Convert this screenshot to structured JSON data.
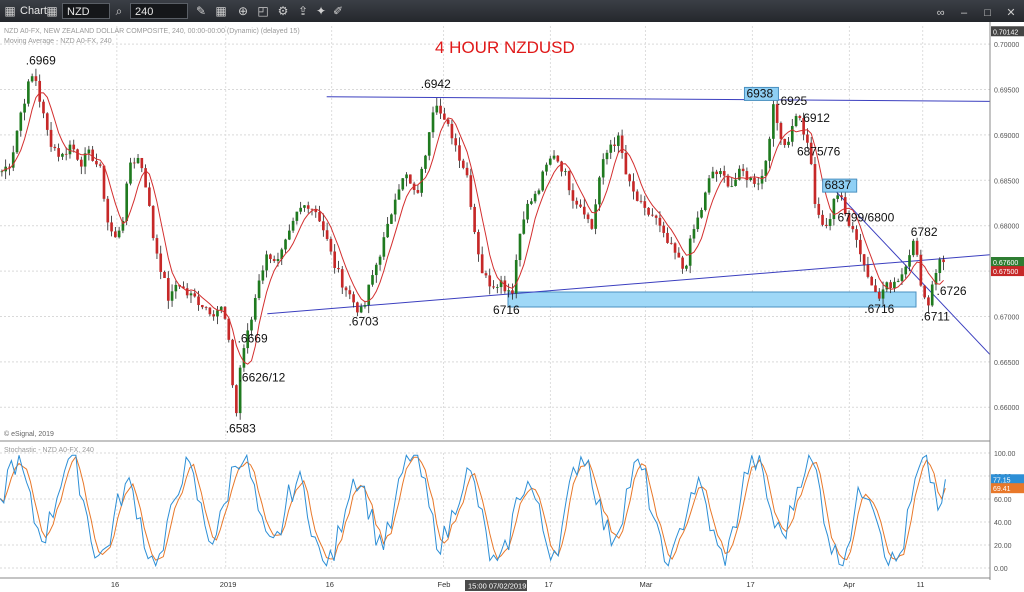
{
  "toolbar": {
    "chart_label": "Chart",
    "symbol": "NZD A0-FX",
    "interval": "240"
  },
  "chart_title": "4 HOUR NZDUSD",
  "header_lines": {
    "line1": "NZD A0-FX, NEW ZEALAND DOLLAR COMPOSITE, 240, 00:00-00:00 (Dynamic) (delayed 15)",
    "line2": "Moving Average - NZD A0-FX, 240"
  },
  "watermark": "© eSignal, 2019",
  "stoch_header": "Stochastic - NZD A0-FX, 240",
  "cursor_time_label": "15:00 07/02/2019",
  "colors": {
    "up_candle": "#1f7a1f",
    "down_candle": "#c62828",
    "moving_average": "#d32f2f",
    "trendline": "#3b3fbf",
    "highlight_box": "#8fd0f5",
    "stoch_k": "#2d8fd6",
    "stoch_d": "#e8782a",
    "title": "#e01919"
  },
  "chart_data": [
    {
      "type": "candlestick",
      "title": "4 HOUR NZDUSD",
      "ylim": [
        0.6565,
        0.702
      ],
      "y_ticks": [
        "0.70000",
        "0.69500",
        "0.69000",
        "0.68500",
        "0.68000",
        "0.67500",
        "0.67000",
        "0.66500",
        "0.66000"
      ],
      "x_tick_labels": [
        "16",
        "2019",
        "16",
        "Feb",
        "17",
        "Mar",
        "17",
        "Apr",
        "11"
      ],
      "current_price_labels": [
        {
          "label": "0.70142",
          "value": 0.70142,
          "color": "#444444"
        },
        {
          "label": "0.67600",
          "value": 0.676,
          "color": "#2e7d32"
        },
        {
          "label": "0.67500",
          "value": 0.675,
          "color": "#c62828"
        }
      ],
      "key_points": [
        {
          "label": ".6969",
          "value": 0.6969
        },
        {
          "label": ".6583",
          "value": 0.6583
        },
        {
          "label": ".6669",
          "value": 0.6669
        },
        {
          "label": ".6626/12",
          "value": 0.6626
        },
        {
          "label": ".6703",
          "value": 0.6703
        },
        {
          "label": ".6942",
          "value": 0.6942
        },
        {
          "label": "6716",
          "value": 0.6716
        },
        {
          "label": "6938",
          "value": 0.6938
        },
        {
          "label": ".6925",
          "value": 0.6925
        },
        {
          "label": ".6912",
          "value": 0.6912
        },
        {
          "label": "6875/76",
          "value": 0.6875
        },
        {
          "label": "6837",
          "value": 0.6837
        },
        {
          "label": "6799/6800",
          "value": 0.6799
        },
        {
          "label": ".6716",
          "value": 0.6716
        },
        {
          "label": "6782",
          "value": 0.6782
        },
        {
          "label": ".6726",
          "value": 0.6726
        },
        {
          "label": ".6711",
          "value": 0.6711
        }
      ],
      "support_zone": [
        0.6705,
        0.6723
      ],
      "trendlines": [
        {
          "name": "upper",
          "from": [
            0.33,
            0.6942
          ],
          "to": [
            1.0,
            0.6937
          ]
        },
        {
          "name": "lower",
          "from": [
            0.27,
            0.6703
          ],
          "to": [
            1.0,
            0.6768
          ]
        },
        {
          "name": "downtrend",
          "from": [
            0.845,
            0.6837
          ],
          "to": [
            1.0,
            0.6658
          ]
        }
      ],
      "price_path": [
        [
          0,
          0.686
        ],
        [
          0.009,
          0.687
        ],
        [
          0.018,
          0.692
        ],
        [
          0.027,
          0.6955
        ],
        [
          0.033,
          0.6969
        ],
        [
          0.04,
          0.693
        ],
        [
          0.048,
          0.6895
        ],
        [
          0.06,
          0.6875
        ],
        [
          0.07,
          0.689
        ],
        [
          0.08,
          0.687
        ],
        [
          0.09,
          0.688
        ],
        [
          0.1,
          0.686
        ],
        [
          0.108,
          0.68
        ],
        [
          0.115,
          0.6785
        ],
        [
          0.123,
          0.681
        ],
        [
          0.13,
          0.687
        ],
        [
          0.14,
          0.6875
        ],
        [
          0.147,
          0.684
        ],
        [
          0.153,
          0.679
        ],
        [
          0.162,
          0.675
        ],
        [
          0.17,
          0.6715
        ],
        [
          0.178,
          0.674
        ],
        [
          0.187,
          0.6725
        ],
        [
          0.196,
          0.672
        ],
        [
          0.205,
          0.6712
        ],
        [
          0.214,
          0.6705
        ],
        [
          0.222,
          0.671
        ],
        [
          0.228,
          0.669
        ],
        [
          0.233,
          0.664
        ],
        [
          0.237,
          0.6583
        ],
        [
          0.241,
          0.664
        ],
        [
          0.246,
          0.6669
        ],
        [
          0.252,
          0.669
        ],
        [
          0.26,
          0.674
        ],
        [
          0.27,
          0.677
        ],
        [
          0.28,
          0.676
        ],
        [
          0.29,
          0.6785
        ],
        [
          0.3,
          0.6815
        ],
        [
          0.31,
          0.6825
        ],
        [
          0.32,
          0.6815
        ],
        [
          0.328,
          0.679
        ],
        [
          0.336,
          0.676
        ],
        [
          0.344,
          0.674
        ],
        [
          0.352,
          0.6725
        ],
        [
          0.36,
          0.671
        ],
        [
          0.366,
          0.6703
        ],
        [
          0.373,
          0.6735
        ],
        [
          0.382,
          0.6765
        ],
        [
          0.392,
          0.68
        ],
        [
          0.4,
          0.684
        ],
        [
          0.41,
          0.6855
        ],
        [
          0.42,
          0.683
        ],
        [
          0.428,
          0.687
        ],
        [
          0.435,
          0.692
        ],
        [
          0.44,
          0.6942
        ],
        [
          0.447,
          0.6915
        ],
        [
          0.455,
          0.6905
        ],
        [
          0.463,
          0.688
        ],
        [
          0.472,
          0.6855
        ],
        [
          0.48,
          0.679
        ],
        [
          0.488,
          0.6745
        ],
        [
          0.497,
          0.6735
        ],
        [
          0.505,
          0.674
        ],
        [
          0.512,
          0.673
        ],
        [
          0.518,
          0.673
        ],
        [
          0.523,
          0.6775
        ],
        [
          0.528,
          0.681
        ],
        [
          0.535,
          0.6825
        ],
        [
          0.543,
          0.6835
        ],
        [
          0.55,
          0.686
        ],
        [
          0.56,
          0.688
        ],
        [
          0.57,
          0.686
        ],
        [
          0.58,
          0.683
        ],
        [
          0.59,
          0.682
        ],
        [
          0.598,
          0.6795
        ],
        [
          0.607,
          0.686
        ],
        [
          0.617,
          0.689
        ],
        [
          0.626,
          0.6895
        ],
        [
          0.634,
          0.685
        ],
        [
          0.643,
          0.683
        ],
        [
          0.652,
          0.6815
        ],
        [
          0.662,
          0.681
        ],
        [
          0.672,
          0.6785
        ],
        [
          0.682,
          0.677
        ],
        [
          0.692,
          0.675
        ],
        [
          0.7,
          0.679
        ],
        [
          0.71,
          0.682
        ],
        [
          0.72,
          0.686
        ],
        [
          0.73,
          0.6855
        ],
        [
          0.74,
          0.6845
        ],
        [
          0.75,
          0.686
        ],
        [
          0.76,
          0.685
        ],
        [
          0.77,
          0.685
        ],
        [
          0.776,
          0.688
        ],
        [
          0.782,
          0.693
        ],
        [
          0.787,
          0.691
        ],
        [
          0.794,
          0.689
        ],
        [
          0.8,
          0.69
        ],
        [
          0.805,
          0.6925
        ],
        [
          0.811,
          0.6912
        ],
        [
          0.816,
          0.689
        ],
        [
          0.82,
          0.6875
        ],
        [
          0.826,
          0.681
        ],
        [
          0.832,
          0.6805
        ],
        [
          0.838,
          0.68
        ],
        [
          0.845,
          0.683
        ],
        [
          0.852,
          0.6837
        ],
        [
          0.858,
          0.68
        ],
        [
          0.864,
          0.6799
        ],
        [
          0.87,
          0.677
        ],
        [
          0.876,
          0.6755
        ],
        [
          0.882,
          0.674
        ],
        [
          0.888,
          0.6716
        ],
        [
          0.894,
          0.673
        ],
        [
          0.9,
          0.6735
        ],
        [
          0.906,
          0.674
        ],
        [
          0.912,
          0.6745
        ],
        [
          0.918,
          0.6765
        ],
        [
          0.924,
          0.6782
        ],
        [
          0.929,
          0.676
        ],
        [
          0.934,
          0.6726
        ],
        [
          0.939,
          0.6711
        ],
        [
          0.944,
          0.674
        ],
        [
          0.95,
          0.676
        ],
        [
          0.955,
          0.676
        ]
      ]
    },
    {
      "type": "line",
      "name": "Stochastic",
      "ylim": [
        0,
        100
      ],
      "y_ticks": [
        "100.00",
        "80.00",
        "60.00",
        "40.00",
        "20.00",
        "0.00"
      ],
      "current_labels": [
        {
          "label": "77.15",
          "value": 77.15,
          "color": "#2d8fd6"
        },
        {
          "label": "69.41",
          "value": 69.41,
          "color": "#e8782a"
        }
      ]
    }
  ]
}
